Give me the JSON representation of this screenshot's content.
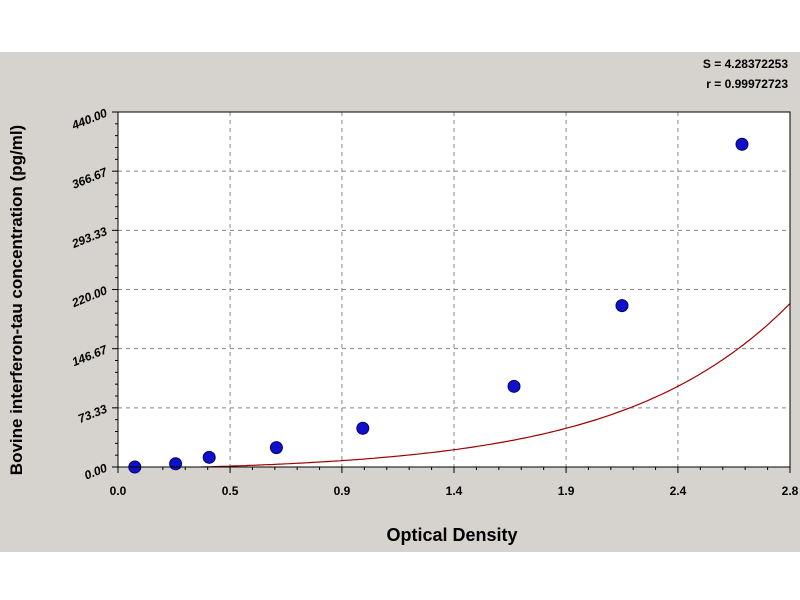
{
  "chart_data": {
    "type": "scatter",
    "xlabel": "Optical Density",
    "ylabel": "Bovine interferon-tau concentration (pg/ml)",
    "xlim": [
      0.0,
      2.8
    ],
    "ylim": [
      0.0,
      440.0
    ],
    "x_ticks": [
      "0.0",
      "0.5",
      "0.9",
      "1.4",
      "1.9",
      "2.4",
      "2.8"
    ],
    "x_tick_values": [
      0.0,
      0.467,
      0.933,
      1.4,
      1.867,
      2.333,
      2.8
    ],
    "y_ticks": [
      "0.00",
      "73.33",
      "146.67",
      "220.00",
      "293.33",
      "366.67",
      "440.00"
    ],
    "y_tick_values": [
      0.0,
      73.33,
      146.67,
      220.0,
      293.33,
      366.67,
      440.0
    ],
    "grid": true,
    "stats": {
      "s": "S = 4.28372253",
      "r": "r = 0.99972723"
    },
    "series": [
      {
        "type": "scatter",
        "points": [
          {
            "x": 0.07,
            "y": 0
          },
          {
            "x": 0.24,
            "y": 4
          },
          {
            "x": 0.38,
            "y": 12
          },
          {
            "x": 0.66,
            "y": 24
          },
          {
            "x": 1.02,
            "y": 48
          },
          {
            "x": 1.65,
            "y": 100
          },
          {
            "x": 2.1,
            "y": 200
          },
          {
            "x": 2.6,
            "y": 400
          }
        ]
      },
      {
        "type": "line",
        "curve": {
          "a": 6.0,
          "b": 0.6,
          "c": 1.45,
          "d": -6.0
        }
      }
    ],
    "colors": {
      "marker": "#1010c8",
      "curve": "#a00000",
      "grid": "#888888",
      "frame_bg": "#d6d3ce",
      "plot_bg": "#ffffff"
    }
  }
}
